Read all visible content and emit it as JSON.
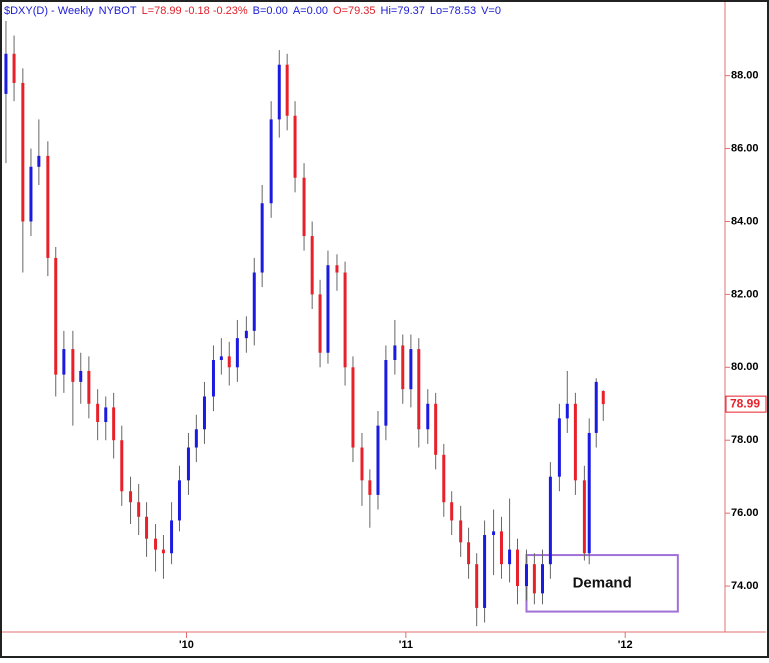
{
  "chart_data": {
    "type": "candlestick",
    "header": [
      {
        "text": "$DXY(D) - Weekly",
        "color": "#1a1ad6"
      },
      {
        "text": "NYBOT",
        "color": "#1a1ad6"
      },
      {
        "text": "L=78.99 -0.18 -0.23%",
        "color": "#e0202a"
      },
      {
        "text": "B=0.00",
        "color": "#1a1ad6"
      },
      {
        "text": "A=0.00",
        "color": "#1a1ad6"
      },
      {
        "text": "O=79.35",
        "color": "#e0202a"
      },
      {
        "text": "Hi=79.37",
        "color": "#1a1ad6"
      },
      {
        "text": "Lo=78.53",
        "color": "#1a1ad6"
      },
      {
        "text": "V=0",
        "color": "#1a1ad6"
      }
    ],
    "up_color": "#1a1ae0",
    "down_color": "#e8202a",
    "wick_color": "#666666",
    "axis_color": "#e07070",
    "xlim": [
      2009.159,
      2012.455
    ],
    "ylim": [
      72.74,
      90.02
    ],
    "xticks": [
      {
        "value": 2010,
        "label": "'10"
      },
      {
        "value": 2011,
        "label": "'11"
      },
      {
        "value": 2012,
        "label": "'12"
      }
    ],
    "yticks": [
      {
        "value": 74,
        "label": "74.00"
      },
      {
        "value": 76,
        "label": "76.00"
      },
      {
        "value": 78,
        "label": "78.00"
      },
      {
        "value": 80,
        "label": "80.00"
      },
      {
        "value": 82,
        "label": "82.00"
      },
      {
        "value": 84,
        "label": "84.00"
      },
      {
        "value": 86,
        "label": "86.00"
      },
      {
        "value": 88,
        "label": "88.00"
      }
    ],
    "x": [
      2009.177,
      2009.214,
      2009.254,
      2009.291,
      2009.327,
      2009.368,
      2009.404,
      2009.441,
      2009.482,
      2009.518,
      2009.555,
      2009.595,
      2009.632,
      2009.668,
      2009.705,
      2009.745,
      2009.782,
      2009.818,
      2009.859,
      2009.895,
      2009.932,
      2009.968,
      2010.009,
      2010.045,
      2010.082,
      2010.123,
      2010.159,
      2010.195,
      2010.232,
      2010.273,
      2010.309,
      2010.345,
      2010.386,
      2010.423,
      2010.459,
      2010.495,
      2010.536,
      2010.573,
      2010.609,
      2010.645,
      2010.686,
      2010.723,
      2010.759,
      2010.8,
      2010.836,
      2010.873,
      2010.909,
      2010.95,
      2010.986,
      2011.023,
      2011.059,
      2011.1,
      2011.136,
      2011.173,
      2011.209,
      2011.25,
      2011.286,
      2011.323,
      2011.359,
      2011.4,
      2011.436,
      2011.473,
      2011.509,
      2011.55,
      2011.586,
      2011.623,
      2011.659,
      2011.7,
      2011.736,
      2011.773,
      2011.814,
      2011.836,
      2011.868,
      2011.9
    ],
    "open": [
      87.5,
      88.6,
      87.8,
      84.0,
      85.5,
      85.8,
      83.0,
      79.8,
      80.5,
      79.6,
      79.9,
      79.0,
      78.5,
      78.9,
      78.0,
      76.6,
      76.3,
      75.9,
      75.3,
      75.0,
      74.9,
      75.8,
      76.9,
      77.8,
      78.3,
      79.2,
      80.2,
      80.3,
      80.0,
      80.8,
      81.0,
      82.6,
      84.5,
      86.8,
      88.3,
      86.9,
      85.2,
      83.6,
      82.0,
      80.4,
      82.8,
      82.6,
      80.0,
      77.8,
      76.9,
      76.5,
      78.4,
      80.2,
      80.6,
      79.4,
      80.5,
      78.3,
      79.0,
      77.6,
      76.3,
      75.8,
      75.2,
      74.6,
      73.4,
      75.4,
      75.5,
      74.6,
      75.0,
      74.0,
      74.6,
      73.8,
      74.6,
      77.0,
      78.6,
      79.0,
      76.9,
      74.9,
      78.2,
      79.35
    ],
    "high": [
      89.5,
      89.1,
      88.2,
      86.0,
      86.8,
      86.2,
      83.3,
      81.0,
      81.0,
      80.4,
      80.3,
      79.4,
      79.2,
      79.3,
      78.4,
      77.0,
      76.8,
      76.3,
      75.7,
      75.4,
      76.3,
      77.3,
      78.2,
      78.7,
      79.6,
      80.6,
      80.8,
      80.7,
      81.3,
      81.4,
      83.0,
      85.0,
      87.3,
      88.7,
      88.6,
      87.3,
      85.6,
      84.0,
      82.4,
      83.2,
      83.1,
      82.9,
      80.3,
      78.2,
      77.2,
      78.8,
      80.6,
      81.3,
      80.9,
      80.9,
      80.8,
      79.4,
      79.3,
      77.9,
      76.6,
      76.2,
      75.6,
      74.9,
      75.8,
      76.1,
      75.9,
      76.4,
      75.3,
      75.0,
      74.9,
      75.0,
      77.4,
      79.0,
      79.9,
      79.3,
      77.3,
      78.6,
      79.7,
      79.37
    ],
    "low": [
      85.6,
      87.3,
      82.6,
      83.6,
      85.0,
      82.5,
      79.2,
      79.3,
      78.4,
      79.0,
      78.6,
      78.0,
      78.0,
      77.5,
      76.2,
      75.7,
      75.4,
      74.8,
      74.4,
      74.2,
      74.6,
      75.5,
      76.5,
      77.4,
      77.9,
      78.8,
      79.8,
      79.5,
      79.6,
      80.4,
      80.6,
      82.2,
      84.1,
      86.3,
      86.5,
      84.8,
      83.2,
      81.6,
      80.0,
      80.1,
      82.1,
      79.5,
      77.4,
      76.2,
      75.6,
      76.1,
      78.0,
      79.8,
      79.0,
      78.9,
      77.8,
      77.9,
      77.2,
      75.9,
      75.4,
      74.8,
      74.2,
      72.9,
      73.0,
      74.3,
      74.2,
      74.1,
      73.5,
      73.6,
      73.5,
      73.5,
      74.2,
      76.6,
      78.2,
      76.5,
      74.7,
      74.6,
      77.8,
      78.53
    ],
    "close": [
      88.6,
      87.8,
      84.0,
      85.5,
      85.8,
      83.0,
      79.8,
      80.5,
      79.6,
      79.9,
      79.0,
      78.5,
      78.9,
      78.0,
      76.6,
      76.3,
      75.9,
      75.3,
      75.0,
      74.9,
      75.8,
      76.9,
      77.8,
      78.3,
      79.2,
      80.2,
      80.3,
      80.0,
      80.8,
      81.0,
      82.6,
      84.5,
      86.8,
      88.3,
      86.9,
      85.2,
      83.6,
      82.0,
      80.4,
      82.8,
      82.6,
      80.0,
      77.8,
      76.9,
      76.5,
      78.4,
      80.2,
      80.6,
      79.4,
      80.5,
      78.3,
      79.0,
      77.6,
      76.3,
      75.8,
      75.2,
      74.6,
      73.4,
      75.4,
      75.5,
      74.6,
      75.0,
      74.0,
      74.6,
      73.8,
      74.6,
      77.0,
      78.6,
      79.0,
      76.9,
      74.9,
      78.2,
      79.6,
      78.99
    ],
    "zone": {
      "label": "Demand",
      "x": [
        2011.55,
        2012.24
      ],
      "y": [
        73.3,
        74.85
      ],
      "color": "#a070d8"
    }
  }
}
